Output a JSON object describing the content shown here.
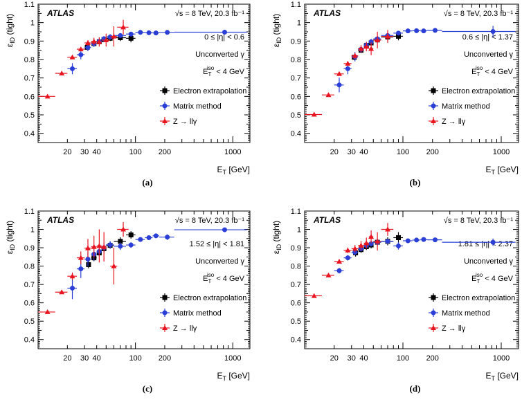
{
  "figure": {
    "common": {
      "ylabel": "ε_ID (tight)",
      "xlabel": "E_T [GeV]",
      "experiment": "ATLAS",
      "energy_label": "√s = 8 TeV, 20.3 fb⁻¹",
      "conversion_label": "Unconverted γ",
      "iso_label": "E_T^iso < 4 GeV",
      "x_ticks": [
        20,
        30,
        40,
        100,
        200,
        1000
      ],
      "x_tick_labels": [
        "20",
        "30",
        "40",
        "100",
        "200",
        "1000"
      ],
      "y_ticks": [
        0.4,
        0.5,
        0.6,
        0.7,
        0.8,
        0.9,
        1,
        1.1
      ],
      "y_tick_labels": [
        "0.4",
        "0.5",
        "0.6",
        "0.7",
        "0.8",
        "0.9",
        "1",
        "1.1"
      ],
      "legend": [
        {
          "key": "ee",
          "label": "Electron extrapolation",
          "color": "#000000",
          "marker": "square"
        },
        {
          "key": "mm",
          "label": "Matrix method",
          "color": "#2b3fd6",
          "marker": "circle"
        },
        {
          "key": "rad",
          "label": "Z → llγ",
          "color": "#e8141f",
          "marker": "triangle"
        }
      ]
    }
  },
  "chart_data": [
    {
      "panel_label": "(a)",
      "eta_label": "0 ≤ |η| < 0.6",
      "type": "scatter",
      "xscale": "log",
      "xlim": [
        10,
        1500
      ],
      "ylim": [
        0.35,
        1.1
      ],
      "ylabel": "ε_ID (tight)",
      "xlabel": "E_T [GeV]",
      "series": [
        {
          "name": "Electron extrapolation",
          "points": [
            [
              32,
              0.866,
              1,
              0.015
            ],
            [
              37.5,
              0.886,
              2.5,
              0.012
            ],
            [
              42.5,
              0.896,
              2.5,
              0.012
            ],
            [
              47.5,
              0.908,
              2.5,
              0.012
            ],
            [
              55,
              0.915,
              5,
              0.015
            ],
            [
              70,
              0.918,
              10,
              0.018
            ],
            [
              90,
              0.915,
              10,
              0.022
            ]
          ]
        },
        {
          "name": "Matrix method",
          "points": [
            [
              22.5,
              0.75,
              2.5,
              0.03
            ],
            [
              27.5,
              0.826,
              2.5,
              0.025
            ],
            [
              32.5,
              0.865,
              2.5,
              0.02
            ],
            [
              37.5,
              0.886,
              2.5,
              0.018
            ],
            [
              42.5,
              0.898,
              2.5,
              0.015
            ],
            [
              47.5,
              0.912,
              2.5,
              0.015
            ],
            [
              55,
              0.922,
              5,
              0.015
            ],
            [
              70,
              0.93,
              10,
              0.01
            ],
            [
              90,
              0.938,
              10,
              0.008
            ],
            [
              112.5,
              0.947,
              12.5,
              0.006
            ],
            [
              137.5,
              0.945,
              12.5,
              0.006
            ],
            [
              162.5,
              0.944,
              12.5,
              0.006
            ],
            [
              212.5,
              0.947,
              37.5,
              0.006
            ],
            [
              825,
              0.948,
              575,
              0.01
            ]
          ]
        },
        {
          "name": "Z → llγ",
          "points": [
            [
              12.5,
              0.6,
              2.5,
              0.005
            ],
            [
              17.5,
              0.725,
              2.5,
              0.008
            ],
            [
              22.5,
              0.812,
              2.5,
              0.01
            ],
            [
              27.5,
              0.856,
              2.5,
              0.012
            ],
            [
              32.5,
              0.89,
              2.5,
              0.015
            ],
            [
              37.5,
              0.898,
              2.5,
              0.02
            ],
            [
              42.5,
              0.895,
              2.5,
              0.025
            ],
            [
              50,
              0.905,
              5,
              0.035
            ],
            [
              60,
              0.925,
              5,
              0.055
            ],
            [
              75,
              0.975,
              10,
              0.04
            ]
          ]
        }
      ]
    },
    {
      "panel_label": "(b)",
      "eta_label": "0.6 ≤ |η| < 1.37",
      "type": "scatter",
      "xscale": "log",
      "xlim": [
        10,
        1500
      ],
      "ylim": [
        0.35,
        1.1
      ],
      "ylabel": "ε_ID (tight)",
      "xlabel": "E_T [GeV]",
      "series": [
        {
          "name": "Electron extrapolation",
          "points": [
            [
              32,
              0.812,
              1,
              0.015
            ],
            [
              37.5,
              0.85,
              2.5,
              0.012
            ],
            [
              42.5,
              0.876,
              2.5,
              0.012
            ],
            [
              47.5,
              0.89,
              2.5,
              0.012
            ],
            [
              55,
              0.906,
              5,
              0.015
            ],
            [
              70,
              0.922,
              10,
              0.018
            ],
            [
              90,
              0.926,
              10,
              0.022
            ]
          ]
        },
        {
          "name": "Matrix method",
          "points": [
            [
              22.5,
              0.662,
              2.5,
              0.04
            ],
            [
              27.5,
              0.75,
              2.5,
              0.03
            ],
            [
              32.5,
              0.815,
              2.5,
              0.025
            ],
            [
              37.5,
              0.855,
              2.5,
              0.02
            ],
            [
              42.5,
              0.878,
              2.5,
              0.018
            ],
            [
              47.5,
              0.896,
              2.5,
              0.015
            ],
            [
              55,
              0.912,
              5,
              0.015
            ],
            [
              70,
              0.93,
              10,
              0.01
            ],
            [
              90,
              0.943,
              10,
              0.008
            ],
            [
              112.5,
              0.955,
              12.5,
              0.006
            ],
            [
              137.5,
              0.956,
              12.5,
              0.006
            ],
            [
              162.5,
              0.955,
              12.5,
              0.006
            ],
            [
              212.5,
              0.958,
              37.5,
              0.006
            ],
            [
              825,
              0.952,
              575,
              0.03
            ]
          ]
        },
        {
          "name": "Z → llγ",
          "points": [
            [
              12.5,
              0.502,
              2.5,
              0.005
            ],
            [
              17.5,
              0.608,
              2.5,
              0.008
            ],
            [
              22.5,
              0.722,
              2.5,
              0.01
            ],
            [
              27.5,
              0.778,
              2.5,
              0.012
            ],
            [
              32.5,
              0.82,
              2.5,
              0.015
            ],
            [
              37.5,
              0.858,
              2.5,
              0.02
            ],
            [
              42.5,
              0.87,
              2.5,
              0.025
            ],
            [
              47.5,
              0.858,
              2.5,
              0.035
            ],
            [
              55,
              0.905,
              5,
              0.045
            ],
            [
              70,
              0.925,
              10,
              0.035
            ]
          ]
        }
      ]
    },
    {
      "panel_label": "(c)",
      "eta_label": "1.52 ≤ |η| < 1.81",
      "type": "scatter",
      "xscale": "log",
      "xlim": [
        10,
        1500
      ],
      "ylim": [
        0.35,
        1.1
      ],
      "ylabel": "ε_ID (tight)",
      "xlabel": "E_T [GeV]",
      "series": [
        {
          "name": "Electron extrapolation",
          "points": [
            [
              33,
              0.808,
              1.5,
              0.02
            ],
            [
              37.5,
              0.845,
              2.5,
              0.018
            ],
            [
              42.5,
              0.872,
              2.5,
              0.018
            ],
            [
              47.5,
              0.895,
              2.5,
              0.018
            ],
            [
              55,
              0.913,
              5,
              0.018
            ],
            [
              70,
              0.935,
              10,
              0.022
            ],
            [
              90,
              0.97,
              10,
              0.02
            ]
          ]
        },
        {
          "name": "Matrix method",
          "points": [
            [
              22.5,
              0.68,
              2.5,
              0.06
            ],
            [
              27.5,
              0.785,
              2.5,
              0.05
            ],
            [
              32.5,
              0.838,
              2.5,
              0.04
            ],
            [
              37.5,
              0.865,
              2.5,
              0.035
            ],
            [
              42.5,
              0.88,
              2.5,
              0.03
            ],
            [
              47.5,
              0.9,
              2.5,
              0.025
            ],
            [
              55,
              0.916,
              5,
              0.02
            ],
            [
              70,
              0.908,
              10,
              0.02
            ],
            [
              90,
              0.915,
              10,
              0.015
            ],
            [
              112.5,
              0.945,
              12.5,
              0.01
            ],
            [
              137.5,
              0.955,
              12.5,
              0.01
            ],
            [
              162.5,
              0.965,
              12.5,
              0.01
            ],
            [
              212.5,
              0.958,
              37.5,
              0.015
            ],
            [
              825,
              0.998,
              575,
              0.005
            ]
          ]
        },
        {
          "name": "Z → llγ",
          "points": [
            [
              12.5,
              0.55,
              2.5,
              0.008
            ],
            [
              17.5,
              0.658,
              2.5,
              0.01
            ],
            [
              22.5,
              0.745,
              2.5,
              0.02
            ],
            [
              27.5,
              0.845,
              2.5,
              0.035
            ],
            [
              32.5,
              0.898,
              2.5,
              0.05
            ],
            [
              37.5,
              0.905,
              2.5,
              0.06
            ],
            [
              42.5,
              0.91,
              2.5,
              0.09
            ],
            [
              47.5,
              0.905,
              2.5,
              0.08
            ],
            [
              60,
              0.8,
              5,
              0.1
            ],
            [
              75,
              1.0,
              10,
              0.04
            ]
          ]
        }
      ]
    },
    {
      "panel_label": "(d)",
      "eta_label": "1.81 ≤ |η| < 2.37",
      "type": "scatter",
      "xscale": "log",
      "xlim": [
        10,
        1500
      ],
      "ylim": [
        0.35,
        1.1
      ],
      "ylabel": "ε_ID (tight)",
      "xlabel": "E_T [GeV]",
      "series": [
        {
          "name": "Electron extrapolation",
          "points": [
            [
              33,
              0.872,
              1.5,
              0.02
            ],
            [
              37.5,
              0.89,
              2.5,
              0.018
            ],
            [
              42.5,
              0.906,
              2.5,
              0.018
            ],
            [
              47.5,
              0.915,
              2.5,
              0.018
            ],
            [
              55,
              0.93,
              5,
              0.018
            ],
            [
              70,
              0.935,
              10,
              0.022
            ],
            [
              90,
              0.955,
              10,
              0.03
            ]
          ]
        },
        {
          "name": "Matrix method",
          "points": [
            [
              22.5,
              0.775,
              2.5,
              0.015
            ],
            [
              27.5,
              0.845,
              2.5,
              0.015
            ],
            [
              32.5,
              0.875,
              2.5,
              0.015
            ],
            [
              37.5,
              0.895,
              2.5,
              0.015
            ],
            [
              42.5,
              0.912,
              2.5,
              0.015
            ],
            [
              47.5,
              0.922,
              2.5,
              0.015
            ],
            [
              55,
              0.93,
              5,
              0.015
            ],
            [
              70,
              0.935,
              10,
              0.012
            ],
            [
              90,
              0.91,
              10,
              0.02
            ],
            [
              112.5,
              0.938,
              12.5,
              0.008
            ],
            [
              137.5,
              0.942,
              12.5,
              0.008
            ],
            [
              162.5,
              0.945,
              12.5,
              0.008
            ],
            [
              212.5,
              0.943,
              37.5,
              0.008
            ],
            [
              825,
              0.93,
              575,
              0.02
            ]
          ]
        },
        {
          "name": "Z → llγ",
          "points": [
            [
              12.5,
              0.638,
              2.5,
              0.005
            ],
            [
              17.5,
              0.75,
              2.5,
              0.008
            ],
            [
              22.5,
              0.825,
              2.5,
              0.012
            ],
            [
              27.5,
              0.886,
              2.5,
              0.015
            ],
            [
              32.5,
              0.895,
              2.5,
              0.02
            ],
            [
              37.5,
              0.912,
              2.5,
              0.025
            ],
            [
              42.5,
              0.925,
              2.5,
              0.03
            ],
            [
              47.5,
              0.96,
              2.5,
              0.035
            ],
            [
              55,
              0.935,
              5,
              0.05
            ],
            [
              70,
              1.0,
              10,
              0.035
            ]
          ]
        }
      ]
    }
  ]
}
